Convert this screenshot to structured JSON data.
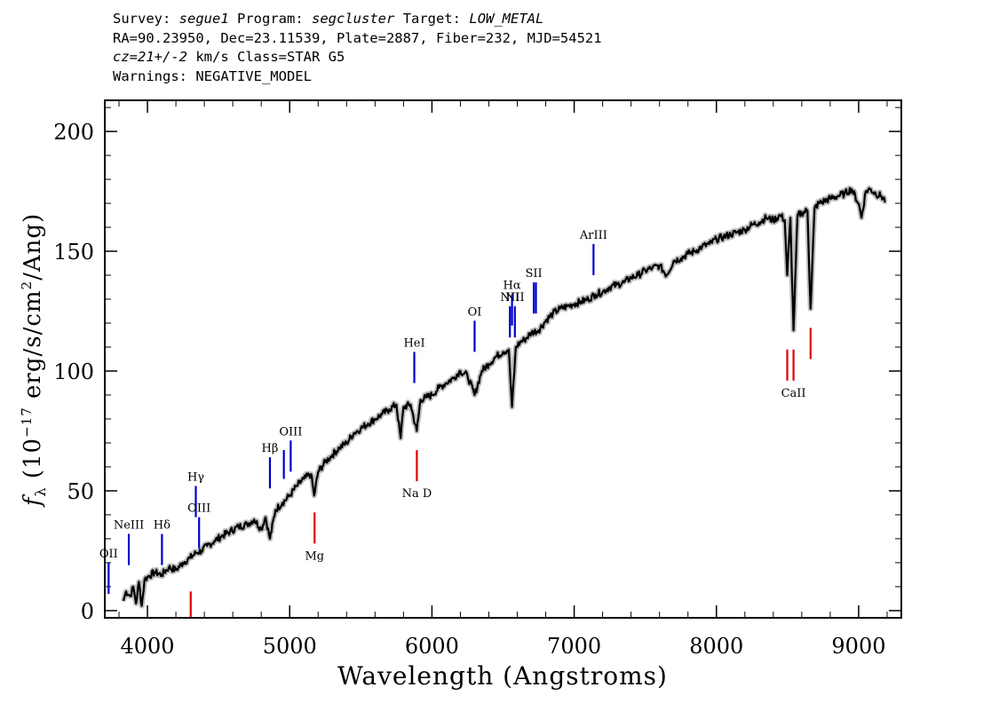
{
  "header": {
    "survey_label": "Survey:",
    "survey": "segue1",
    "program_label": "Program:",
    "program": "segcluster",
    "target_label": "Target:",
    "target": "LOW_METAL",
    "coords_line": "RA=90.23950, Dec=23.11539, Plate=2887, Fiber=232, MJD=54521",
    "cz_label": "cz",
    "cz_value": "=21+/-2",
    "cz_unit": "km/s Class=STAR G5",
    "warnings_line": "Warnings: NEGATIVE_MODEL"
  },
  "chart_data": {
    "type": "line",
    "xlabel": "Wavelength (Angstroms)",
    "ylabel": "f_λ (10^-17 erg/s/cm^2/Ang)",
    "xlim": [
      3700,
      9300
    ],
    "ylim": [
      -3,
      213
    ],
    "xticks": [
      4000,
      5000,
      6000,
      7000,
      8000,
      9000
    ],
    "yticks": [
      0,
      50,
      100,
      150,
      200
    ],
    "grid": false,
    "series": [
      {
        "color": "#000000",
        "x": [
          3830,
          3850,
          3880,
          3900,
          3920,
          3940,
          3960,
          3980,
          4000,
          4050,
          4100,
          4150,
          4200,
          4250,
          4300,
          4340,
          4380,
          4420,
          4470,
          4520,
          4580,
          4640,
          4700,
          4750,
          4800,
          4830,
          4861,
          4900,
          4950,
          5000,
          5050,
          5100,
          5150,
          5172,
          5200,
          5250,
          5300,
          5350,
          5400,
          5450,
          5500,
          5550,
          5600,
          5650,
          5700,
          5750,
          5780,
          5800,
          5850,
          5893,
          5920,
          5960,
          6000,
          6050,
          6100,
          6150,
          6200,
          6250,
          6300,
          6350,
          6400,
          6450,
          6500,
          6540,
          6563,
          6590,
          6620,
          6650,
          6700,
          6750,
          6800,
          6850,
          6900,
          6950,
          7000,
          7050,
          7100,
          7150,
          7200,
          7250,
          7300,
          7350,
          7400,
          7450,
          7500,
          7550,
          7600,
          7650,
          7700,
          7750,
          7800,
          7850,
          7900,
          7950,
          8000,
          8050,
          8100,
          8150,
          8200,
          8250,
          8300,
          8350,
          8400,
          8450,
          8480,
          8498,
          8520,
          8542,
          8570,
          8600,
          8640,
          8662,
          8690,
          8720,
          8760,
          8800,
          8850,
          8900,
          8950,
          9000,
          9020,
          9050,
          9080,
          9120,
          9160,
          9190
        ],
        "y": [
          4,
          8,
          6,
          10,
          3,
          12,
          2,
          13,
          14,
          16,
          15,
          18,
          17,
          20,
          22,
          24,
          25,
          27,
          29,
          31,
          33,
          35,
          36,
          38,
          34,
          39,
          30,
          42,
          45,
          48,
          52,
          55,
          57,
          48,
          58,
          62,
          65,
          68,
          70,
          74,
          76,
          78,
          80,
          82,
          84,
          86,
          72,
          85,
          86,
          75,
          88,
          89,
          90,
          93,
          95,
          97,
          100,
          98,
          90,
          100,
          103,
          106,
          108,
          109,
          85,
          110,
          112,
          113,
          116,
          117,
          121,
          124,
          126,
          127,
          128,
          129,
          130,
          132,
          133,
          135,
          136,
          137,
          139,
          140,
          142,
          143,
          144,
          140,
          146,
          147,
          149,
          150,
          152,
          153,
          155,
          156,
          157,
          158,
          159,
          161,
          162,
          164,
          163,
          165,
          163,
          140,
          164,
          117,
          165,
          166,
          167,
          126,
          168,
          170,
          171,
          172,
          173,
          174,
          176,
          170,
          164,
          175,
          176,
          174,
          173,
          171
        ]
      }
    ],
    "lines": [
      {
        "label": "OII",
        "x": 3727,
        "y0": 7,
        "y1": 20,
        "color": "#0000cc",
        "label_side": "above"
      },
      {
        "label": "NeIII",
        "x": 3869,
        "y0": 19,
        "y1": 32,
        "color": "#0000cc",
        "label_side": "above"
      },
      {
        "label": "Hδ",
        "x": 4102,
        "y0": 19,
        "y1": 32,
        "color": "#0000cc",
        "label_side": "above"
      },
      {
        "label": "Hγ",
        "x": 4340,
        "y0": 39,
        "y1": 52,
        "color": "#0000cc",
        "label_side": "above"
      },
      {
        "label": "OIII",
        "x": 4363,
        "y0": 26,
        "y1": 39,
        "color": "#0000cc",
        "label_side": "above"
      },
      {
        "label": "Hβ",
        "x": 4861,
        "y0": 51,
        "y1": 64,
        "color": "#0000cc",
        "label_side": "above"
      },
      {
        "label": "OIII",
        "x": 4959,
        "y0": 55,
        "y1": 67,
        "color": "#0000cc",
        "label_side": "none"
      },
      {
        "label": "OIII",
        "x": 5007,
        "y0": 58,
        "y1": 71,
        "color": "#0000cc",
        "label_side": "above"
      },
      {
        "label": "HeI",
        "x": 5876,
        "y0": 95,
        "y1": 108,
        "color": "#0000cc",
        "label_side": "above"
      },
      {
        "label": "OI",
        "x": 6300,
        "y0": 108,
        "y1": 121,
        "color": "#0000cc",
        "label_side": "above"
      },
      {
        "label": "NII",
        "x": 6548,
        "y0": 114,
        "y1": 127,
        "color": "#0000cc",
        "label_side": "above"
      },
      {
        "label": "Hα",
        "x": 6563,
        "y0": 119,
        "y1": 132,
        "color": "#0000cc",
        "label_side": "above"
      },
      {
        "label": "NII",
        "x": 6583,
        "y0": 114,
        "y1": 127,
        "color": "#0000cc",
        "label_side": "above"
      },
      {
        "label": "SII",
        "x": 6716,
        "y0": 124,
        "y1": 137,
        "color": "#0000cc",
        "label_side": "above"
      },
      {
        "label": "SII",
        "x": 6731,
        "y0": 124,
        "y1": 137,
        "color": "#0000cc",
        "label_side": "none"
      },
      {
        "label": "ArIII",
        "x": 7136,
        "y0": 140,
        "y1": 153,
        "color": "#0000cc",
        "label_side": "above"
      },
      {
        "label": "",
        "x": 4304,
        "y0": -3,
        "y1": 8,
        "color": "#dd0000",
        "label_side": "none"
      },
      {
        "label": "Mg",
        "x": 5175,
        "y0": 28,
        "y1": 41,
        "color": "#dd0000",
        "label_side": "below"
      },
      {
        "label": "Na D",
        "x": 5894,
        "y0": 54,
        "y1": 67,
        "color": "#dd0000",
        "label_side": "below"
      },
      {
        "label": "CaII",
        "x": 8498,
        "y0": 96,
        "y1": 109,
        "color": "#dd0000",
        "label_side": "none"
      },
      {
        "label": "CaII",
        "x": 8542,
        "y0": 96,
        "y1": 109,
        "color": "#dd0000",
        "label_side": "below"
      },
      {
        "label": "",
        "x": 8662,
        "y0": 105,
        "y1": 118,
        "color": "#dd0000",
        "label_side": "none"
      }
    ]
  }
}
